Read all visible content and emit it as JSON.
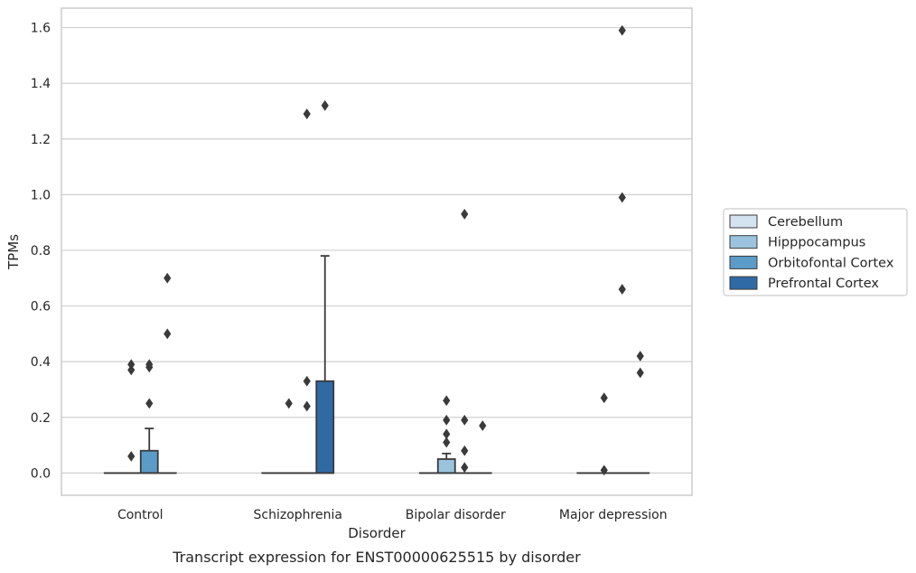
{
  "chart_data": {
    "type": "box",
    "xlabel": "Disorder",
    "ylabel": "TPMs",
    "caption": "Transcript expression for ENST00000625515 by disorder",
    "ylim": [
      -0.08,
      1.67
    ],
    "yticks": [
      0.0,
      0.2,
      0.4,
      0.6,
      0.8,
      1.0,
      1.2,
      1.4,
      1.6
    ],
    "ytick_labels": [
      "0.0",
      "0.2",
      "0.4",
      "0.6",
      "0.8",
      "1.0",
      "1.2",
      "1.4",
      "1.6"
    ],
    "grid": "horizontal",
    "legend_position": "right",
    "categories": [
      "Control",
      "Schizophrenia",
      "Bipolar disorder",
      "Major depression"
    ],
    "series": [
      {
        "name": "Cerebellum",
        "color": "#d4e3f0",
        "boxes": [
          {
            "q1": 0,
            "median": 0,
            "q3": 0,
            "whisker_low": 0,
            "whisker_high": 0,
            "outliers": []
          },
          {
            "q1": 0,
            "median": 0,
            "q3": 0,
            "whisker_low": 0,
            "whisker_high": 0,
            "outliers": []
          },
          {
            "q1": 0,
            "median": 0,
            "q3": 0,
            "whisker_low": 0,
            "whisker_high": 0,
            "outliers": []
          },
          {
            "q1": 0,
            "median": 0,
            "q3": 0,
            "whisker_low": 0,
            "whisker_high": 0,
            "outliers": []
          }
        ]
      },
      {
        "name": "Hipppocampus",
        "color": "#9bc3dd",
        "boxes": [
          {
            "q1": 0,
            "median": 0,
            "q3": 0,
            "whisker_low": 0,
            "whisker_high": 0,
            "outliers": [
              0.06,
              0.37,
              0.39
            ]
          },
          {
            "q1": 0,
            "median": 0,
            "q3": 0,
            "whisker_low": 0,
            "whisker_high": 0,
            "outliers": [
              0.25
            ]
          },
          {
            "q1": 0,
            "median": 0,
            "q3": 0.05,
            "whisker_low": 0,
            "whisker_high": 0.07,
            "outliers": [
              0.11,
              0.14,
              0.19,
              0.26
            ]
          },
          {
            "q1": 0,
            "median": 0,
            "q3": 0,
            "whisker_low": 0,
            "whisker_high": 0,
            "outliers": [
              0.01,
              0.27
            ]
          }
        ]
      },
      {
        "name": "Orbitofontal Cortex",
        "color": "#5b9bc8",
        "boxes": [
          {
            "q1": 0,
            "median": 0,
            "q3": 0.08,
            "whisker_low": 0,
            "whisker_high": 0.16,
            "outliers": [
              0.25,
              0.38,
              0.39
            ]
          },
          {
            "q1": 0,
            "median": 0,
            "q3": 0,
            "whisker_low": 0,
            "whisker_high": 0,
            "outliers": [
              0.24,
              0.33,
              1.29
            ]
          },
          {
            "q1": 0,
            "median": 0,
            "q3": 0,
            "whisker_low": 0,
            "whisker_high": 0,
            "outliers": [
              0.02,
              0.08,
              0.19,
              0.93
            ]
          },
          {
            "q1": 0,
            "median": 0,
            "q3": 0,
            "whisker_low": 0,
            "whisker_high": 0,
            "outliers": [
              0.66,
              0.99,
              1.59
            ]
          }
        ]
      },
      {
        "name": "Prefrontal Cortex",
        "color": "#2f6aa5",
        "boxes": [
          {
            "q1": 0,
            "median": 0,
            "q3": 0,
            "whisker_low": 0,
            "whisker_high": 0,
            "outliers": [
              0.5,
              0.7
            ]
          },
          {
            "q1": 0,
            "median": 0,
            "q3": 0.33,
            "whisker_low": 0,
            "whisker_high": 0.78,
            "outliers": [
              1.32
            ]
          },
          {
            "q1": 0,
            "median": 0,
            "q3": 0,
            "whisker_low": 0,
            "whisker_high": 0,
            "outliers": [
              0.17
            ]
          },
          {
            "q1": 0,
            "median": 0,
            "q3": 0,
            "whisker_low": 0,
            "whisker_high": 0,
            "outliers": [
              0.36,
              0.42
            ]
          }
        ]
      }
    ]
  }
}
